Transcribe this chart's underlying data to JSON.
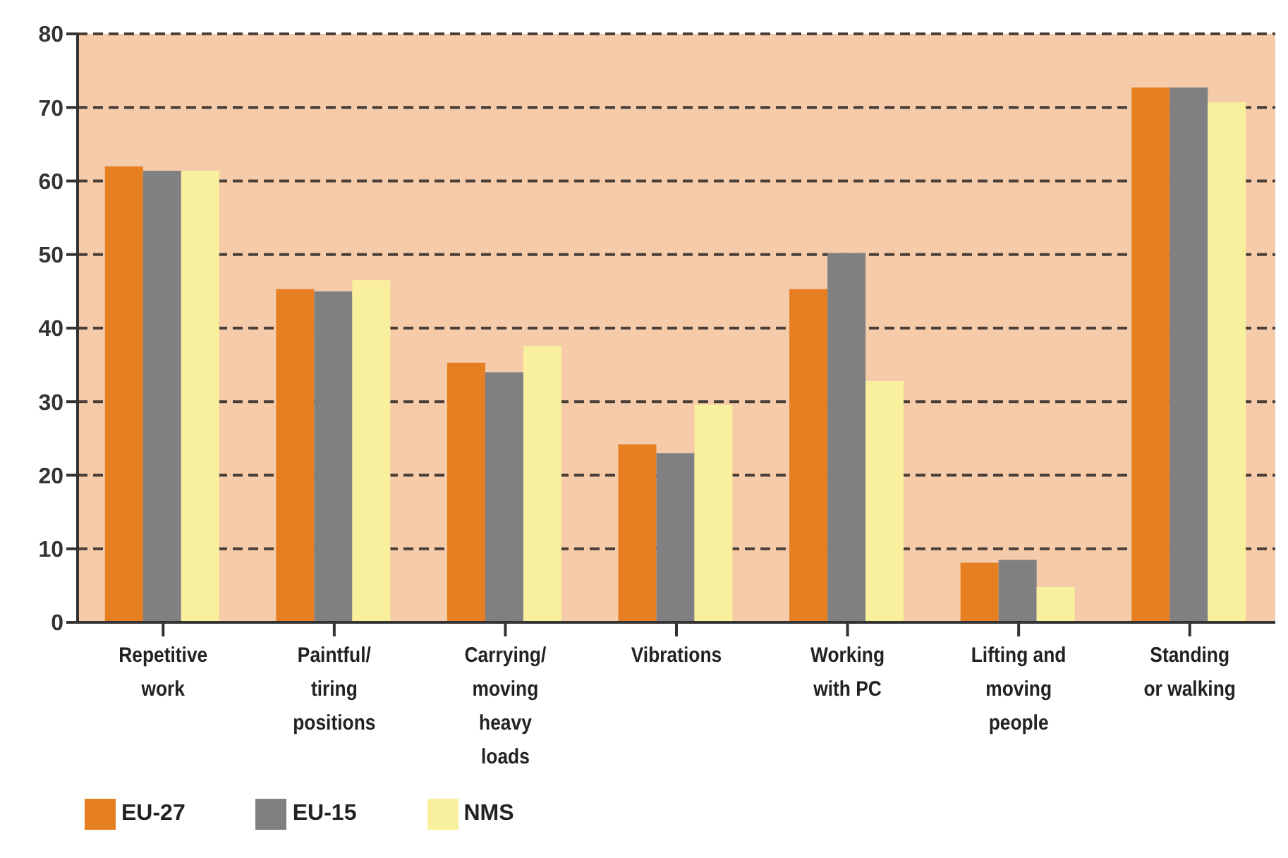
{
  "chart_data": {
    "type": "bar",
    "categories": [
      "Repetitive\nwork",
      "Paintful/\ntiring\npositions",
      "Carrying/\nmoving\nheavy\nloads",
      "Vibrations",
      "Working\nwith PC",
      "Lifting and\nmoving\npeople",
      "Standing\nor walking"
    ],
    "series": [
      {
        "name": "EU-27",
        "color": "#e67e22",
        "values": [
          62,
          45.3,
          35.3,
          24.2,
          45.3,
          8.1,
          72.7
        ]
      },
      {
        "name": "EU-15",
        "color": "#808083",
        "values": [
          61.4,
          45,
          34,
          23,
          50.2,
          8.5,
          72.7
        ]
      },
      {
        "name": "NMS",
        "color": "#f8f09c",
        "values": [
          61.4,
          46.5,
          37.6,
          29.6,
          32.8,
          4.8,
          70.7
        ]
      }
    ],
    "ylim": [
      0,
      80
    ],
    "yticks": [
      0,
      10,
      20,
      30,
      40,
      50,
      60,
      70,
      80
    ],
    "grid": "y",
    "legend": "bottom left"
  }
}
